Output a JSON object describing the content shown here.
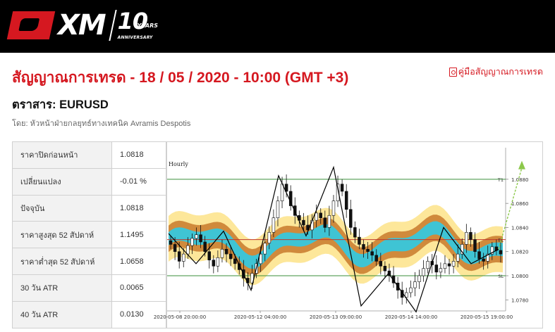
{
  "header": {
    "logo_text": "XM",
    "anniversary_number": "10",
    "anniversary_years": "YEARS",
    "anniversary_label": "ANNIVERSARY"
  },
  "page": {
    "title": "สัญญาณการเทรด - 18 / 05 / 2020 - 10:00 (GMT +3)",
    "manual_link": "คู่มือสัญญาณการเทรด",
    "instrument": "ตราสาร: EURUSD",
    "byline": "โดย: หัวหน้าฝ่ายกลยุทธ์ทางเทคนิค Avramis Despotis"
  },
  "stats": [
    {
      "label": "ราคาปิดก่อนหน้า",
      "value": "1.0818"
    },
    {
      "label": "เปลี่ยนแปลง",
      "value": "-0.01 %"
    },
    {
      "label": "ปัจจุบัน",
      "value": "1.0818"
    },
    {
      "label": "ราคาสูงสุด 52 สัปดาห์",
      "value": "1.1495"
    },
    {
      "label": "ราคาต่ำสุด 52 สัปดาห์",
      "value": "1.0658"
    },
    {
      "label": "30 วัน ATR",
      "value": "0.0065"
    },
    {
      "label": "40 วัน ATR",
      "value": "0.0130"
    }
  ],
  "chart_data": {
    "type": "candlestick",
    "timeframe_label": "Hourly",
    "y_ticks": [
      "1.0880",
      "1.0860",
      "1.0840",
      "1.0820",
      "1.0800",
      "1.0780"
    ],
    "ylim": [
      1.0772,
      1.0898
    ],
    "x_ticks": [
      "2020-05-08 20:00:00",
      "2020-05-12 04:00:00",
      "2020-05-13 09:00:00",
      "2020-05-14 14:00:00",
      "2020-05-15 19:00:00"
    ],
    "levels": [
      {
        "label": "T1",
        "value": 1.088,
        "color": "#3a8f3a"
      },
      {
        "label": "EL",
        "value": 1.083,
        "color": "#c0392b"
      },
      {
        "label": "SL",
        "value": 1.08,
        "color": "#3a8f3a"
      }
    ],
    "zigzag": [
      1.0835,
      1.081,
      1.0837,
      1.0788,
      1.0883,
      1.0833,
      1.089,
      1.0775,
      1.0802,
      1.077,
      1.084,
      1.081,
      1.0822
    ],
    "closes": [
      1.0826,
      1.082,
      1.0812,
      1.0818,
      1.0825,
      1.0831,
      1.0834,
      1.0828,
      1.082,
      1.0813,
      1.0808,
      1.0815,
      1.0822,
      1.0818,
      1.0814,
      1.081,
      1.0805,
      1.0798,
      1.0794,
      1.0802,
      1.081,
      1.0818,
      1.0827,
      1.0836,
      1.0848,
      1.0862,
      1.0876,
      1.087,
      1.0858,
      1.085,
      1.0846,
      1.0842,
      1.0838,
      1.0846,
      1.0852,
      1.0848,
      1.084,
      1.085,
      1.0862,
      1.0876,
      1.087,
      1.0855,
      1.084,
      1.0832,
      1.0826,
      1.0822,
      1.082,
      1.0817,
      1.0812,
      1.0808,
      1.0804,
      1.08,
      1.0794,
      1.0788,
      1.0782,
      1.0786,
      1.079,
      1.0795,
      1.08,
      1.0806,
      1.0812,
      1.0809,
      1.0803,
      1.0806,
      1.081,
      1.0808,
      1.0812,
      1.0818,
      1.0826,
      1.0836,
      1.083,
      1.082,
      1.0814,
      1.0812,
      1.0818,
      1.0824,
      1.0821,
      1.0818
    ],
    "band_colors": {
      "outer": "#fde79a",
      "mid": "#d08a3c",
      "inner": "#3fc4d4"
    },
    "zigzag_color": "#000000",
    "projection_color": "#8cc84b"
  }
}
